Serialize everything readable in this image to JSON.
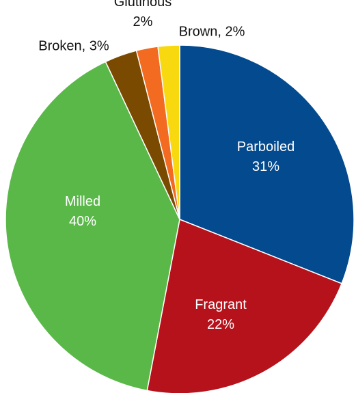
{
  "chart_data": {
    "type": "pie",
    "labels": [
      [
        "Parboiled",
        "31%"
      ],
      [
        "Fragrant",
        "22%"
      ],
      [
        "Milled",
        "40%"
      ],
      [
        "Broken, 3%"
      ],
      [
        "Glutinous",
        "2%"
      ],
      [
        "Brown, 2%"
      ]
    ],
    "values": [
      31,
      22,
      40,
      3,
      2,
      2
    ],
    "colors": [
      "#034a8e",
      "#b5121b",
      "#5ab849",
      "#7a4a00",
      "#f26b21",
      "#f8d90f"
    ]
  }
}
